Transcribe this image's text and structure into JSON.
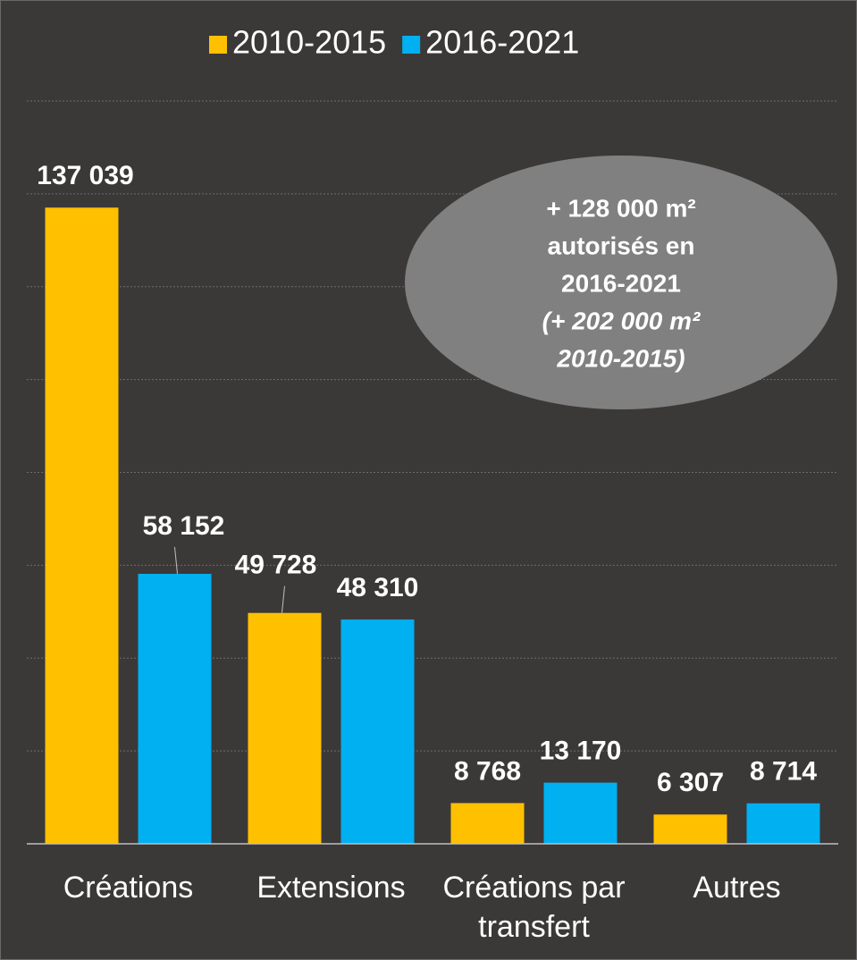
{
  "chart_data": {
    "type": "bar",
    "categories": [
      "Créations",
      "Extensions",
      "Créations par transfert",
      "Autres"
    ],
    "series": [
      {
        "name": "2010-2015",
        "color": "#ffc000",
        "values": [
          137039,
          49728,
          8768,
          6307
        ],
        "value_labels": [
          "137 039",
          "49 728",
          "8 768",
          "6 307"
        ]
      },
      {
        "name": "2016-2021",
        "color": "#00b0f0",
        "values": [
          58152,
          48310,
          13170,
          8714
        ],
        "value_labels": [
          "58 152",
          "48 310",
          "13 170",
          "8 714"
        ]
      }
    ],
    "ylim": [
      0,
      160000
    ],
    "yticks": [
      0,
      20000,
      40000,
      60000,
      80000,
      100000,
      120000,
      140000,
      160000
    ],
    "grid": true,
    "legend": "top",
    "annotation": {
      "lines": [
        "+ 128 000 m²",
        "autorisés en",
        "2016-2021",
        "(+ 202 000 m²",
        "2010-2015)"
      ]
    }
  }
}
